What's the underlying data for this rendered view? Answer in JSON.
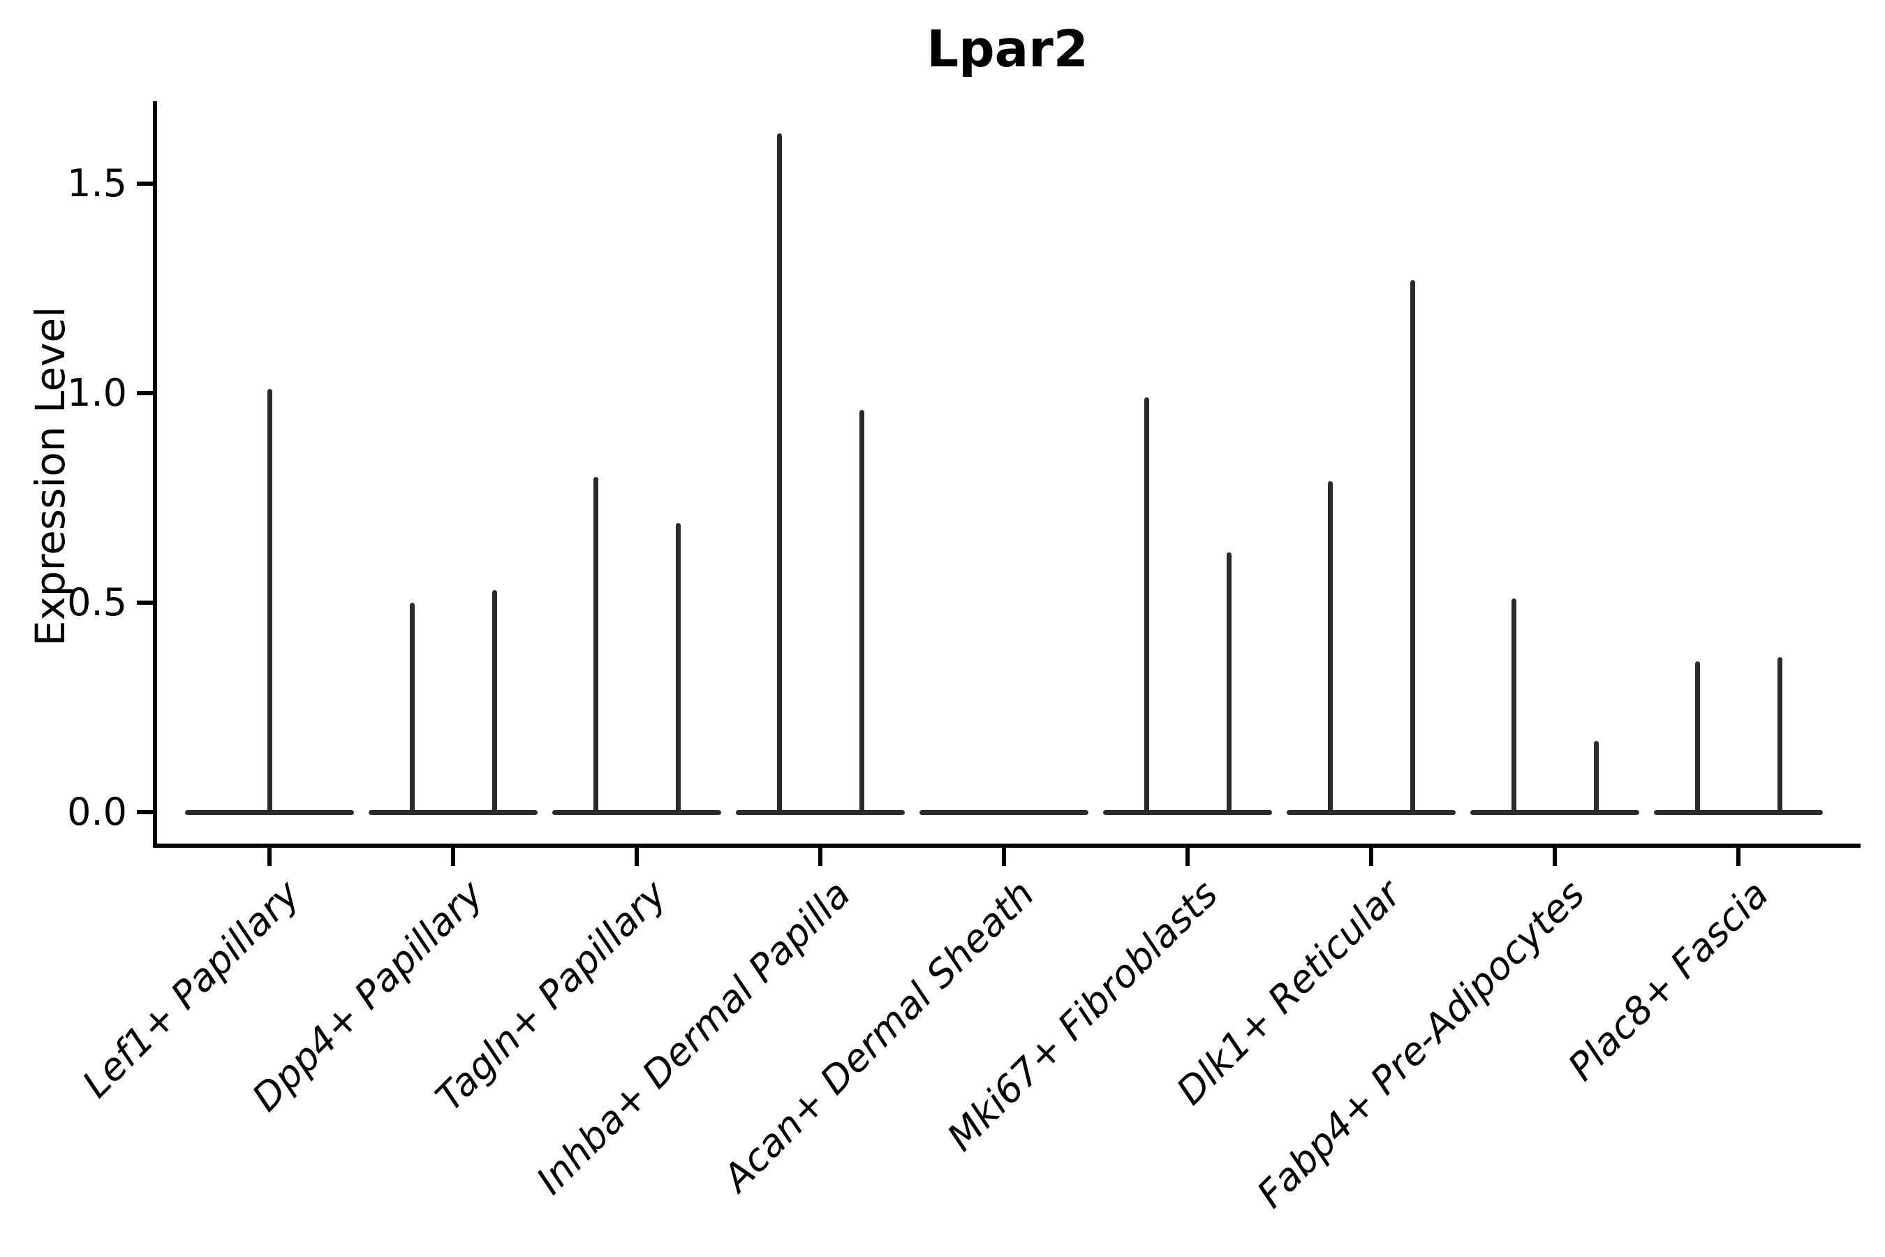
{
  "figure": {
    "title": "Lpar2",
    "ylabel": "Expression Level"
  },
  "chart_data": {
    "type": "violin",
    "title": "Lpar2",
    "xlabel": "",
    "ylabel": "Expression Level",
    "ylim": [
      -0.07,
      1.7
    ],
    "ytick_labels": [
      "0.0",
      "0.5",
      "1.0",
      "1.5"
    ],
    "ytick_values": [
      0.0,
      0.5,
      1.0,
      1.5
    ],
    "grid": false,
    "legend_position": "none",
    "description": "Violin plot of Lpar2 expression level per fibroblast subtype; most density collapsed at 0 with thin spikes up to the maximum expression value. Most categories show two side-by-side violins (split groups).",
    "categories": [
      "Lef1+ Papillary",
      "Dpp4+ Papillary",
      "Tagln+ Papillary",
      "Inhba+ Dermal Papilla",
      "Acan+ Dermal Sheath",
      "Mki67+ Fibroblasts",
      "Dlk1+ Reticular",
      "Fabp4+ Pre-Adipocytes",
      "Plac8+ Fascia"
    ],
    "violins": [
      {
        "category": "Lef1+ Papillary",
        "groups": [
          {
            "slot": "center",
            "max_expression": 1.01
          }
        ]
      },
      {
        "category": "Dpp4+ Papillary",
        "groups": [
          {
            "slot": "left",
            "max_expression": 0.5
          },
          {
            "slot": "right",
            "max_expression": 0.53
          }
        ]
      },
      {
        "category": "Tagln+ Papillary",
        "groups": [
          {
            "slot": "left",
            "max_expression": 0.8
          },
          {
            "slot": "right",
            "max_expression": 0.69
          }
        ]
      },
      {
        "category": "Inhba+ Dermal Papilla",
        "groups": [
          {
            "slot": "left",
            "max_expression": 1.62
          },
          {
            "slot": "right",
            "max_expression": 0.96
          }
        ]
      },
      {
        "category": "Acan+ Dermal Sheath",
        "groups": []
      },
      {
        "category": "Mki67+ Fibroblasts",
        "groups": [
          {
            "slot": "left",
            "max_expression": 0.99
          },
          {
            "slot": "right",
            "max_expression": 0.62
          }
        ]
      },
      {
        "category": "Dlk1+ Reticular",
        "groups": [
          {
            "slot": "left",
            "max_expression": 0.79
          },
          {
            "slot": "right",
            "max_expression": 1.27
          }
        ]
      },
      {
        "category": "Fabp4+ Pre-Adipocytes",
        "groups": [
          {
            "slot": "left",
            "max_expression": 0.51
          },
          {
            "slot": "right",
            "max_expression": 0.17
          }
        ]
      },
      {
        "category": "Plac8+ Fascia",
        "groups": [
          {
            "slot": "left",
            "max_expression": 0.36
          },
          {
            "slot": "right",
            "max_expression": 0.37
          }
        ]
      }
    ],
    "colors": {
      "violin_stroke": "#2b2b2b",
      "axis": "#000000",
      "background": "#ffffff",
      "text": "#000000"
    }
  }
}
